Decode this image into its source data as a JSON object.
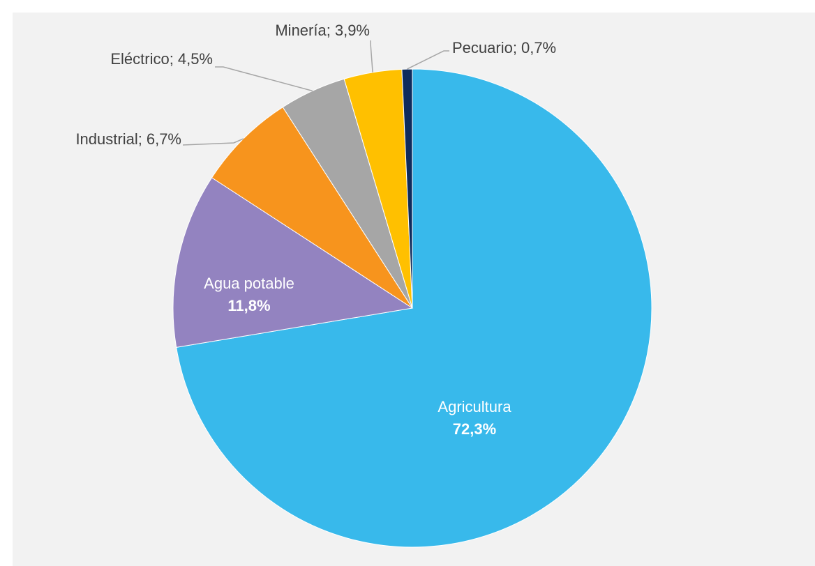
{
  "chart_data": {
    "type": "pie",
    "categories": [
      "Agricultura",
      "Agua potable",
      "Industrial",
      "Eléctrico",
      "Minería",
      "Pecuario"
    ],
    "values": [
      72.3,
      11.8,
      6.7,
      4.5,
      3.9,
      0.7
    ],
    "value_labels": [
      "72,3%",
      "11,8%",
      "6,7%",
      "4,5%",
      "3,9%",
      "0,7%"
    ],
    "label_separator": ";",
    "colors": [
      "#38b9eb",
      "#9383c0",
      "#f7941d",
      "#a6a6a6",
      "#ffc000",
      "#0e2b5c"
    ]
  }
}
